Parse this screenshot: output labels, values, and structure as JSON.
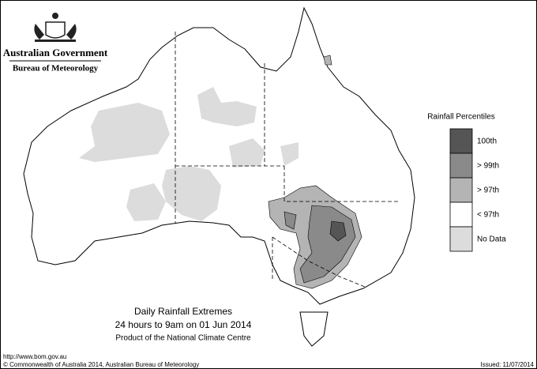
{
  "header": {
    "government": "Australian Government",
    "agency": "Bureau of Meteorology"
  },
  "legend": {
    "title": "Rainfall Percentiles",
    "items": [
      {
        "label": "100th",
        "color": "#555555"
      },
      {
        "label": "> 99th",
        "color": "#8a8a8a"
      },
      {
        "label": "> 97th",
        "color": "#b4b4b4"
      },
      {
        "label": "< 97th",
        "color": "#ffffff"
      },
      {
        "label": "No Data",
        "color": "#dcdcdc"
      }
    ]
  },
  "caption": {
    "title": "Daily Rainfall Extremes",
    "period": "24 hours to 9am on 01 Jun 2014",
    "credit": "Product of the National Climate Centre"
  },
  "footer": {
    "url": "http://www.bom.gov.au",
    "copyright": "© Commonwealth of Australia 2014, Australian Bureau of Meteorology",
    "issued": "Issued: 11/07/2014"
  }
}
